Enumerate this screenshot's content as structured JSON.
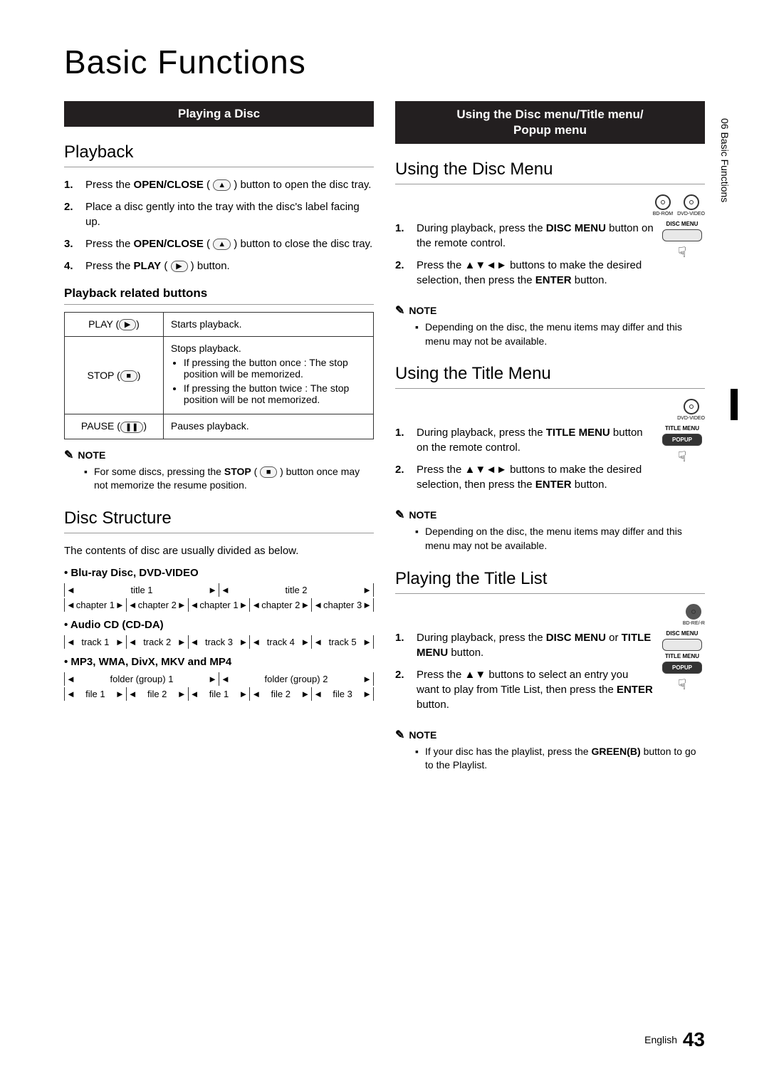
{
  "page": {
    "title": "Basic Functions",
    "sideTab": "06  Basic Functions",
    "footer_lang": "English",
    "footer_page": "43"
  },
  "left": {
    "sectionBar": "Playing a Disc",
    "playback": {
      "heading": "Playback",
      "steps": [
        {
          "n": "1.",
          "pre": "Press the ",
          "bold": "OPEN/CLOSE",
          "post": " ( ",
          "icon": "▲",
          "tail": " ) button to open the disc tray."
        },
        {
          "n": "2.",
          "text": "Place a disc gently into the tray with the disc's label facing up."
        },
        {
          "n": "3.",
          "pre": "Press the ",
          "bold": "OPEN/CLOSE",
          "post": " ( ",
          "icon": "▲",
          "tail": " ) button to close the disc tray."
        },
        {
          "n": "4.",
          "pre": "Press the ",
          "bold": "PLAY",
          "post": " ( ",
          "icon": "▶",
          "tail": " ) button."
        }
      ],
      "relatedHeading": "Playback related buttons",
      "table": {
        "rows": [
          {
            "label": "PLAY (",
            "icon": "▶",
            "labelEnd": ")",
            "desc": "Starts playback."
          },
          {
            "label": "STOP (",
            "icon": "■",
            "labelEnd": ")",
            "desc": "Stops playback.",
            "bullets": [
              "If pressing the button once : The stop position will be memorized.",
              "If pressing the button twice : The stop position will be not memorized."
            ]
          },
          {
            "label": "PAUSE (",
            "icon": "❚❚",
            "labelEnd": ")",
            "desc": "Pauses playback."
          }
        ]
      },
      "note": {
        "label": "NOTE",
        "items": [
          {
            "pre": "For some discs, pressing the ",
            "bold": "STOP",
            "post": " ( ",
            "icon": "■",
            "tail": " ) button once may not memorize the resume position."
          }
        ]
      }
    },
    "discStructure": {
      "heading": "Disc Structure",
      "intro": "The contents of disc are usually divided as below.",
      "groups": [
        {
          "title": "• Blu-ray Disc, DVD-VIDEO",
          "rows": [
            [
              "title 1",
              "title 2"
            ],
            [
              "chapter 1",
              "chapter 2",
              "chapter 1",
              "chapter 2",
              "chapter 3"
            ]
          ]
        },
        {
          "title": "• Audio CD (CD-DA)",
          "rows": [
            [
              "track 1",
              "track 2",
              "track 3",
              "track 4",
              "track 5"
            ]
          ]
        },
        {
          "title": "• MP3, WMA, DivX, MKV and MP4",
          "rows": [
            [
              "folder (group) 1",
              "folder (group) 2"
            ],
            [
              "file 1",
              "file 2",
              "file 1",
              "file 2",
              "file 3"
            ]
          ]
        }
      ]
    }
  },
  "right": {
    "sectionBar": "Using the Disc menu/Title menu/\nPopup menu",
    "discMenu": {
      "heading": "Using the Disc Menu",
      "discs": [
        "BD-ROM",
        "DVD-VIDEO"
      ],
      "remote": {
        "label": "DISC MENU"
      },
      "steps": [
        {
          "n": "1.",
          "pre": "During playback, press the ",
          "bold": "DISC MENU",
          "post": " button on the remote control."
        },
        {
          "n": "2.",
          "pre": "Press the ",
          "sym": "▲▼◄►",
          "mid": " buttons to make the desired selection, then press the ",
          "bold": "ENTER",
          "post": " button."
        }
      ],
      "note": {
        "label": "NOTE",
        "items": [
          "Depending on the disc, the menu items may differ and this menu may not be available."
        ]
      }
    },
    "titleMenu": {
      "heading": "Using the Title Menu",
      "discs": [
        "DVD-VIDEO"
      ],
      "remote": {
        "label1": "TITLE MENU",
        "label2": "POPUP"
      },
      "steps": [
        {
          "n": "1.",
          "pre": "During playback, press the ",
          "bold": "TITLE MENU",
          "post": " button on the remote control."
        },
        {
          "n": "2.",
          "pre": "Press the ",
          "sym": "▲▼◄►",
          "mid": " buttons to make the desired selection, then press the ",
          "bold": "ENTER",
          "post": " button."
        }
      ],
      "note": {
        "label": "NOTE",
        "items": [
          "Depending on the disc, the menu items may differ and this menu may not be available."
        ]
      }
    },
    "titleList": {
      "heading": "Playing the Title List",
      "discs": [
        "BD-RE/-R"
      ],
      "remote": {
        "label1": "DISC MENU",
        "label2": "TITLE MENU",
        "label3": "POPUP"
      },
      "steps": [
        {
          "n": "1.",
          "pre": "During playback, press the ",
          "bold": "DISC MENU",
          "mid": " or ",
          "bold2": "TITLE MENU",
          "post": " button."
        },
        {
          "n": "2.",
          "pre": "Press the ",
          "sym": "▲▼",
          "mid": " buttons to select an entry you want to play from Title List, then press the ",
          "bold": "ENTER",
          "post": " button."
        }
      ],
      "note": {
        "label": "NOTE",
        "items": [
          {
            "pre": "If your disc has the playlist, press the ",
            "bold": "GREEN(B)",
            "post": " button to go to the Playlist."
          }
        ]
      }
    }
  },
  "style": {
    "bg": "#ffffff",
    "text": "#000000",
    "bar_bg": "#231f20",
    "bar_fg": "#ffffff",
    "border": "#333333",
    "rule": "#999999",
    "title_fs": 46,
    "h2_fs": 24,
    "h3_fs": 17,
    "body_fs": 15,
    "table_fs": 14,
    "struct_fs": 13
  }
}
